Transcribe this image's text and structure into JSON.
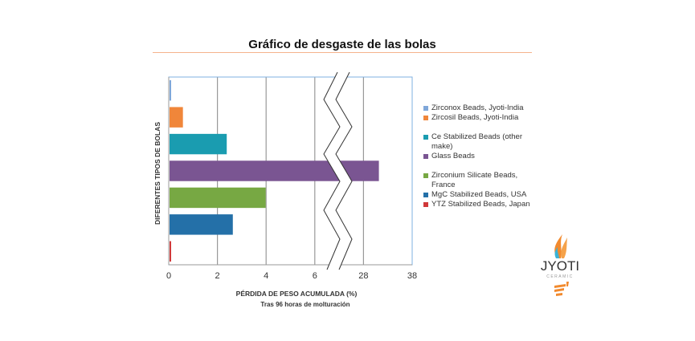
{
  "chart_data": {
    "type": "bar",
    "orientation": "horizontal",
    "title": "Gráfico de desgaste de las bolas",
    "xlabel": "PÉRDIDA DE PESO ACUMULADA (%)",
    "xlabel_sub": "Tras 96 horas de molturación",
    "ylabel": "DIFERENTES TIPOS DE BOLAS",
    "x_ticks": [
      "0",
      "2",
      "4",
      "6",
      "28",
      "38"
    ],
    "axis_break": [
      6,
      28
    ],
    "grid": true,
    "legend_position": "right",
    "series": [
      {
        "name": "Zirconox Beads, Jyoti-India",
        "value": 0.05,
        "color": "#7fa7d9"
      },
      {
        "name": "Zircosil Beads, Jyoti-India",
        "value": 0.55,
        "color": "#f0863a"
      },
      {
        "name": "Ce Stabilized Beads (other make)",
        "value": 2.35,
        "color": "#1a9cb0"
      },
      {
        "name": "Glass Beads",
        "value": 31,
        "color": "#7a5592"
      },
      {
        "name": "Zirconium Silicate Beads, France",
        "value": 3.95,
        "color": "#77a843"
      },
      {
        "name": "MgC Stabilized Beads, USA",
        "value": 2.6,
        "color": "#2470a8"
      },
      {
        "name": "YTZ Stabilized Beads, Japan",
        "value": 0.05,
        "color": "#d0393a"
      }
    ]
  },
  "logo": {
    "name": "JYOTI",
    "sub": "CERAMIC"
  }
}
